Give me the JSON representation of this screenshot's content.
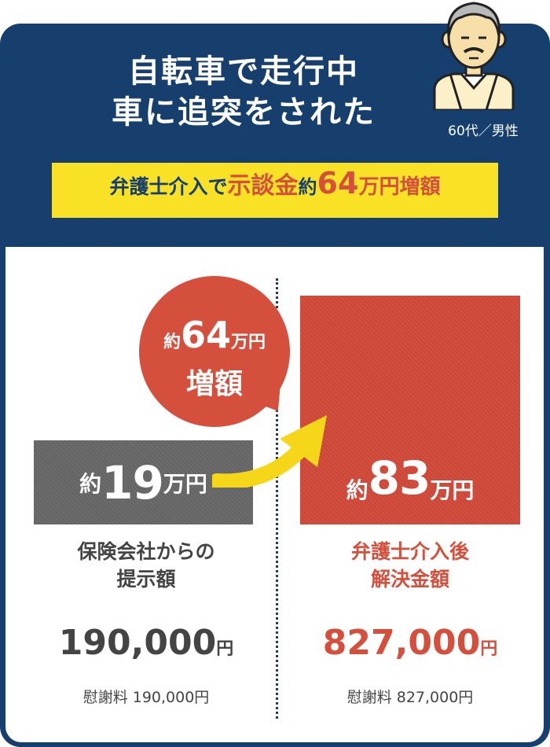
{
  "header": {
    "title_line1": "自転車で走行中",
    "title_line2": "車に追突をされた",
    "person_caption": "60代／男性"
  },
  "banner": {
    "part1": "弁護士介入で",
    "part2": "示談金",
    "part3": "約",
    "part4": "64",
    "part5": "万円増額"
  },
  "bubble": {
    "prefix": "約",
    "number": "64",
    "unit": "万円",
    "label": "増額"
  },
  "before": {
    "prefix": "約",
    "number": "19",
    "unit": "万円",
    "label_line1": "保険会社からの",
    "label_line2": "提示額",
    "amount": "190,000",
    "amount_unit": "円",
    "detail": "慰謝料 190,000円"
  },
  "after": {
    "prefix": "約",
    "number": "83",
    "unit": "万円",
    "label_line1": "弁護士介入後",
    "label_line2": "解決金額",
    "amount": "827,000",
    "amount_unit": "円",
    "detail": "慰謝料 827,000円"
  },
  "colors": {
    "navy": "#163f6e",
    "yellow": "#f9e226",
    "red": "#d4503d",
    "grey": "#6c6c6c",
    "arrow": "#f5d619"
  },
  "icons": {
    "avatar": "elderly-man-icon",
    "arrow": "curved-arrow-icon"
  }
}
